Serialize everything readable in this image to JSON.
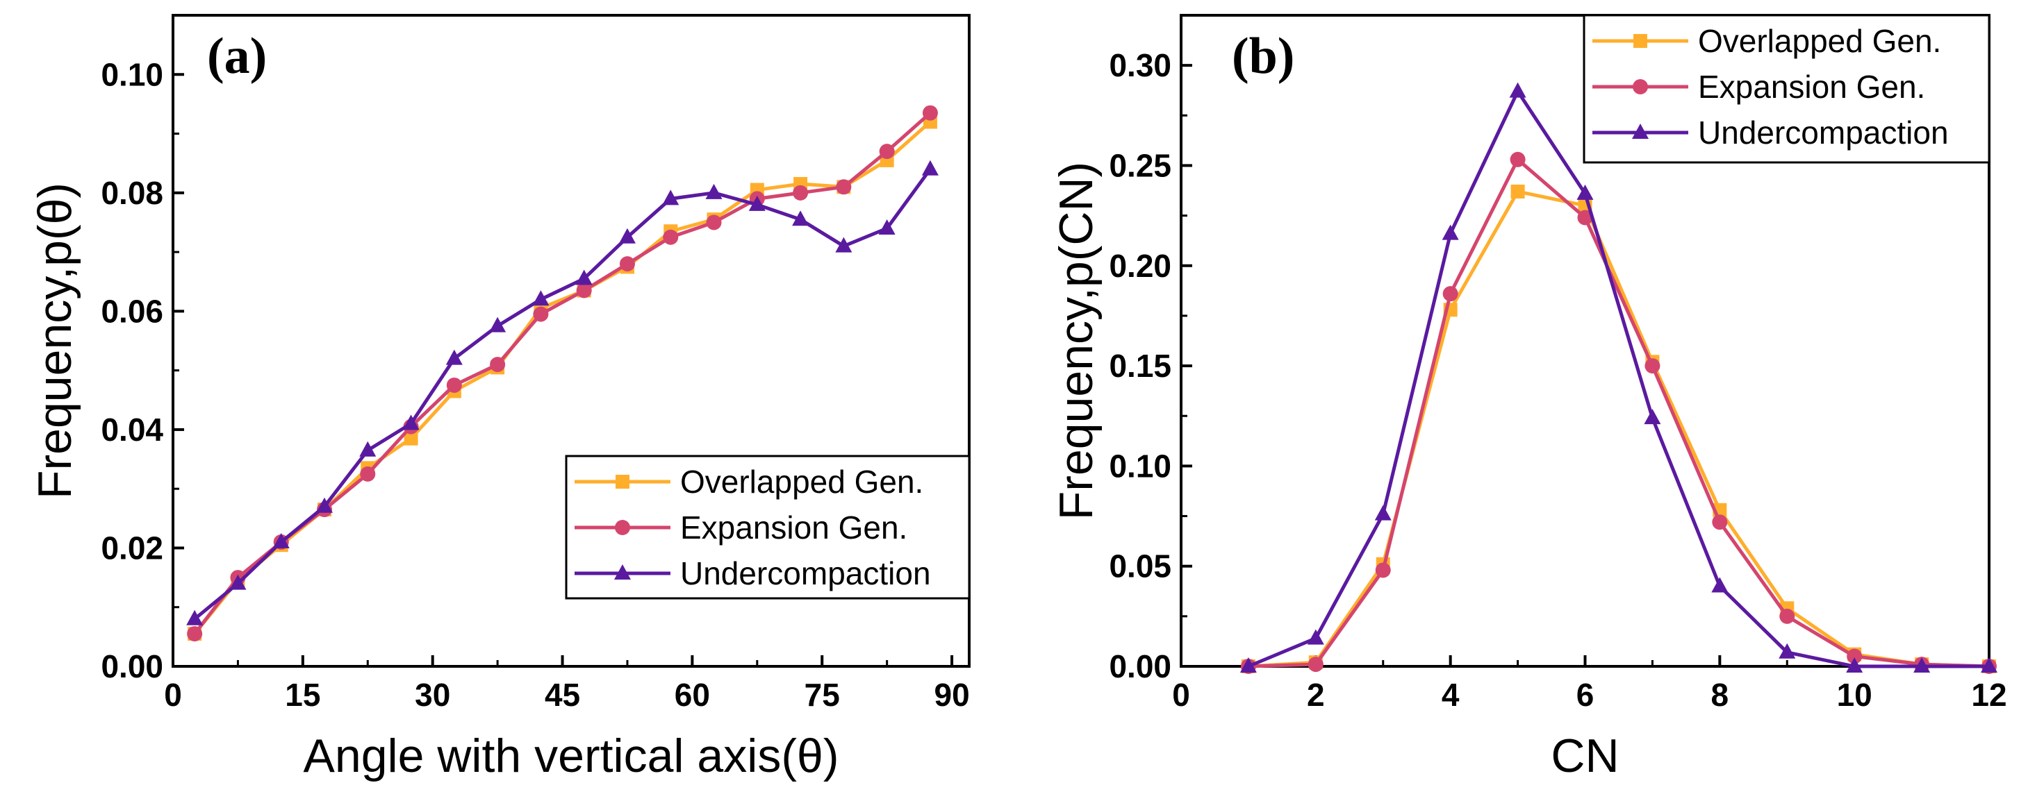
{
  "colors": {
    "overlapped": "#FFAE2C",
    "expansion": "#D4456E",
    "undercompaction": "#5A1AA0"
  },
  "chart_data": [
    {
      "type": "line",
      "panel_label": "(a)",
      "title": "",
      "xlabel": "Angle with vertical axis(θ)",
      "ylabel": "Frequency,p(θ)",
      "xlim": [
        0,
        92
      ],
      "ylim": [
        0,
        0.11
      ],
      "xticks": [
        0,
        15,
        30,
        45,
        60,
        75,
        90
      ],
      "xtick_labels": [
        "0",
        "15",
        "30",
        "45",
        "60",
        "75",
        "90"
      ],
      "yticks": [
        0,
        0.02,
        0.04,
        0.06,
        0.08,
        0.1
      ],
      "ytick_labels": [
        "0.00",
        "0.02",
        "0.04",
        "0.06",
        "0.08",
        "0.10"
      ],
      "legend_position": "bottom-right",
      "x": [
        2.5,
        7.5,
        12.5,
        17.5,
        22.5,
        27.5,
        32.5,
        37.5,
        42.5,
        47.5,
        52.5,
        57.5,
        62.5,
        67.5,
        72.5,
        77.5,
        82.5,
        87.5
      ],
      "series": [
        {
          "name": "Overlapped Gen.",
          "marker": "square",
          "color_key": "overlapped",
          "values": [
            0.0055,
            0.0145,
            0.0205,
            0.0265,
            0.0335,
            0.0385,
            0.0465,
            0.0505,
            0.0605,
            0.0635,
            0.0675,
            0.0735,
            0.0755,
            0.0805,
            0.0815,
            0.081,
            0.0855,
            0.092
          ]
        },
        {
          "name": "Expansion Gen.",
          "marker": "circle",
          "color_key": "expansion",
          "values": [
            0.0055,
            0.015,
            0.021,
            0.0265,
            0.0325,
            0.0405,
            0.0475,
            0.051,
            0.0595,
            0.0635,
            0.068,
            0.0725,
            0.075,
            0.079,
            0.08,
            0.081,
            0.087,
            0.0935
          ]
        },
        {
          "name": "Undercompaction",
          "marker": "triangle",
          "color_key": "undercompaction",
          "values": [
            0.008,
            0.014,
            0.021,
            0.027,
            0.0365,
            0.041,
            0.052,
            0.0575,
            0.062,
            0.0655,
            0.0725,
            0.079,
            0.08,
            0.078,
            0.0755,
            0.071,
            0.074,
            0.084
          ]
        }
      ]
    },
    {
      "type": "line",
      "panel_label": "(b)",
      "title": "",
      "xlabel": "CN",
      "ylabel": "Frequency,p(CN)",
      "xlim": [
        0,
        12
      ],
      "ylim": [
        0,
        0.325
      ],
      "xticks": [
        0,
        2,
        4,
        6,
        8,
        10,
        12
      ],
      "xtick_labels": [
        "0",
        "2",
        "4",
        "6",
        "8",
        "10",
        "12"
      ],
      "yticks": [
        0,
        0.05,
        0.1,
        0.15,
        0.2,
        0.25,
        0.3
      ],
      "ytick_labels": [
        "0.00",
        "0.05",
        "0.10",
        "0.15",
        "0.20",
        "0.25",
        "0.30"
      ],
      "legend_position": "top-right",
      "x": [
        1,
        2,
        3,
        4,
        5,
        6,
        7,
        8,
        9,
        10,
        11,
        12
      ],
      "series": [
        {
          "name": "Overlapped Gen.",
          "marker": "square",
          "color_key": "overlapped",
          "values": [
            0.0,
            0.002,
            0.051,
            0.178,
            0.237,
            0.23,
            0.152,
            0.078,
            0.029,
            0.006,
            0.001,
            0.0
          ]
        },
        {
          "name": "Expansion Gen.",
          "marker": "circle",
          "color_key": "expansion",
          "values": [
            0.0,
            0.001,
            0.048,
            0.186,
            0.253,
            0.224,
            0.15,
            0.072,
            0.025,
            0.005,
            0.001,
            0.0
          ]
        },
        {
          "name": "Undercompaction",
          "marker": "triangle",
          "color_key": "undercompaction",
          "values": [
            0.0,
            0.014,
            0.076,
            0.216,
            0.287,
            0.236,
            0.124,
            0.04,
            0.007,
            0.0,
            0.0,
            0.0
          ]
        }
      ]
    }
  ]
}
